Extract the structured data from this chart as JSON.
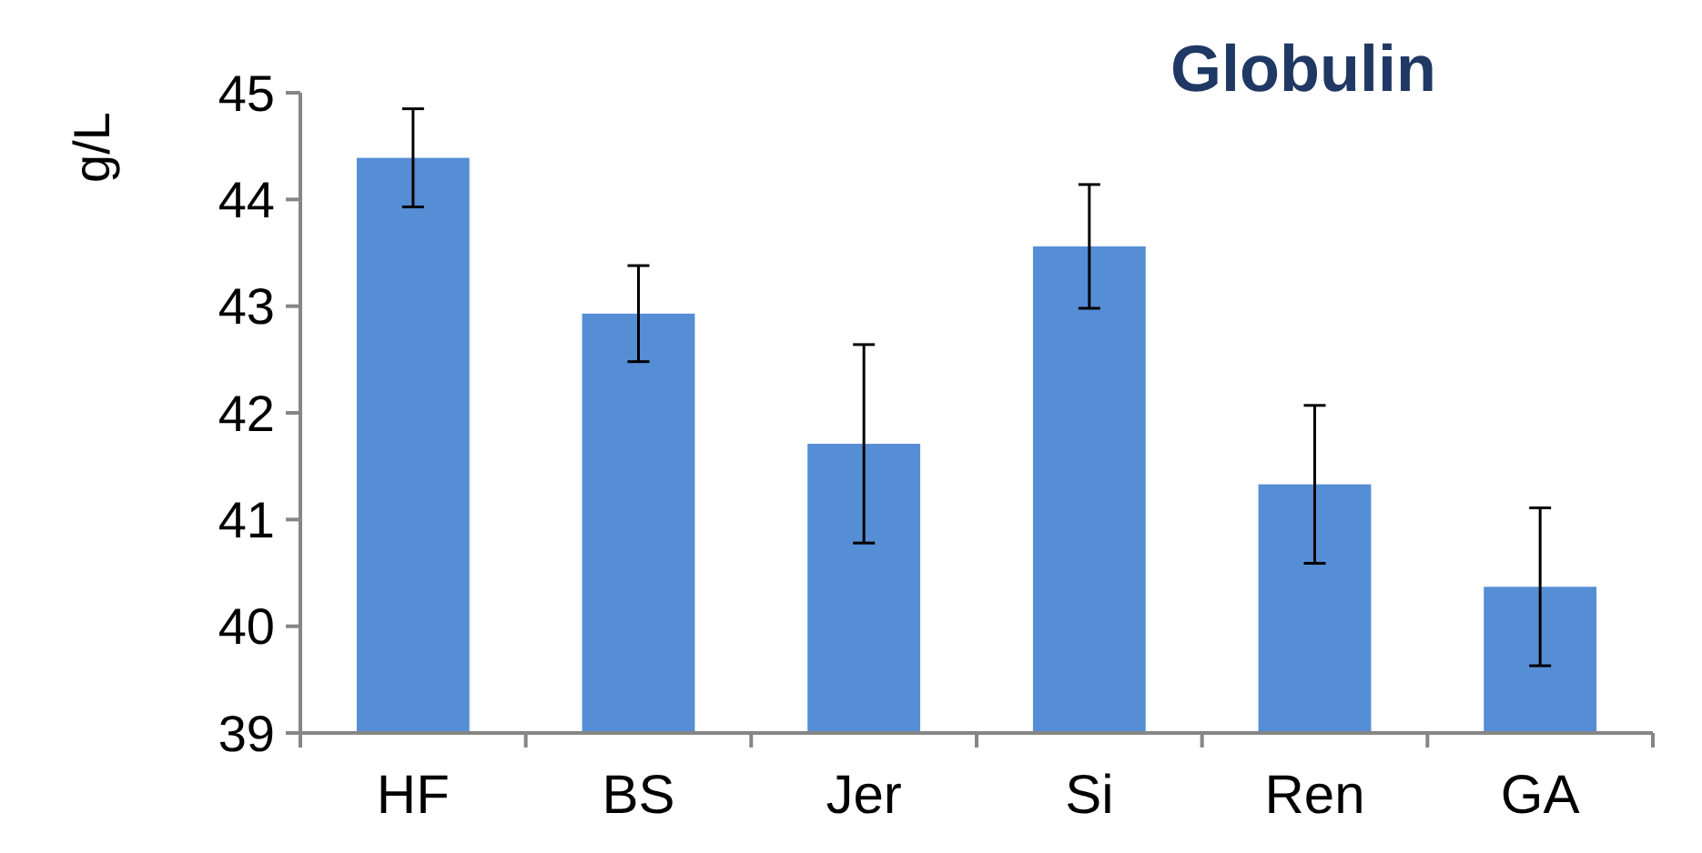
{
  "chart_data": {
    "type": "bar",
    "title": "Globulin",
    "ylabel": "g/L",
    "categories": [
      "HF",
      "BS",
      "Jer",
      "Si",
      "Ren",
      "GA"
    ],
    "values": [
      44.39,
      42.93,
      41.71,
      43.56,
      41.33,
      40.37
    ],
    "errors": [
      0.46,
      0.45,
      0.93,
      0.58,
      0.74,
      0.74
    ],
    "color": "#558ed5",
    "ylim": [
      39,
      45
    ],
    "yticks": [
      39,
      40,
      41,
      42,
      43,
      44,
      45
    ]
  }
}
